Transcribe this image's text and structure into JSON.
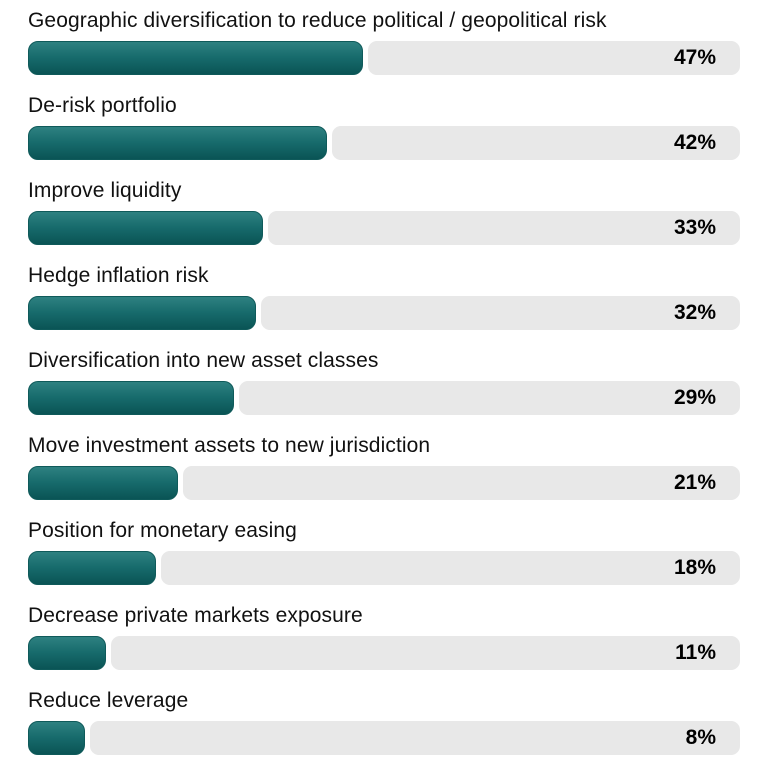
{
  "chart_data": {
    "type": "bar",
    "orientation": "horizontal",
    "title": "",
    "xlabel": "",
    "ylabel": "",
    "xlim": [
      0,
      100
    ],
    "grid": false,
    "legend": "none",
    "unit": "%",
    "categories": [
      "Geographic diversification to reduce political / geopolitical risk",
      "De-risk portfolio",
      "Improve liquidity",
      "Hedge inflation risk",
      "Diversification into new asset classes",
      "Move investment assets to new jurisdiction",
      "Position for monetary easing",
      "Decrease private markets exposure",
      "Reduce leverage"
    ],
    "values": [
      47,
      42,
      33,
      32,
      29,
      21,
      18,
      11,
      8
    ],
    "value_labels": [
      "47%",
      "42%",
      "33%",
      "32%",
      "29%",
      "21%",
      "18%",
      "11%",
      "8%"
    ],
    "colors": {
      "bar_gradient_top": "#2e8181",
      "bar_gradient_bottom": "#0a5455",
      "bar_border": "#0f5a5a",
      "track": "#e8e8e8",
      "category_text": "#111111",
      "value_text": "#000000",
      "background": "#ffffff"
    }
  }
}
